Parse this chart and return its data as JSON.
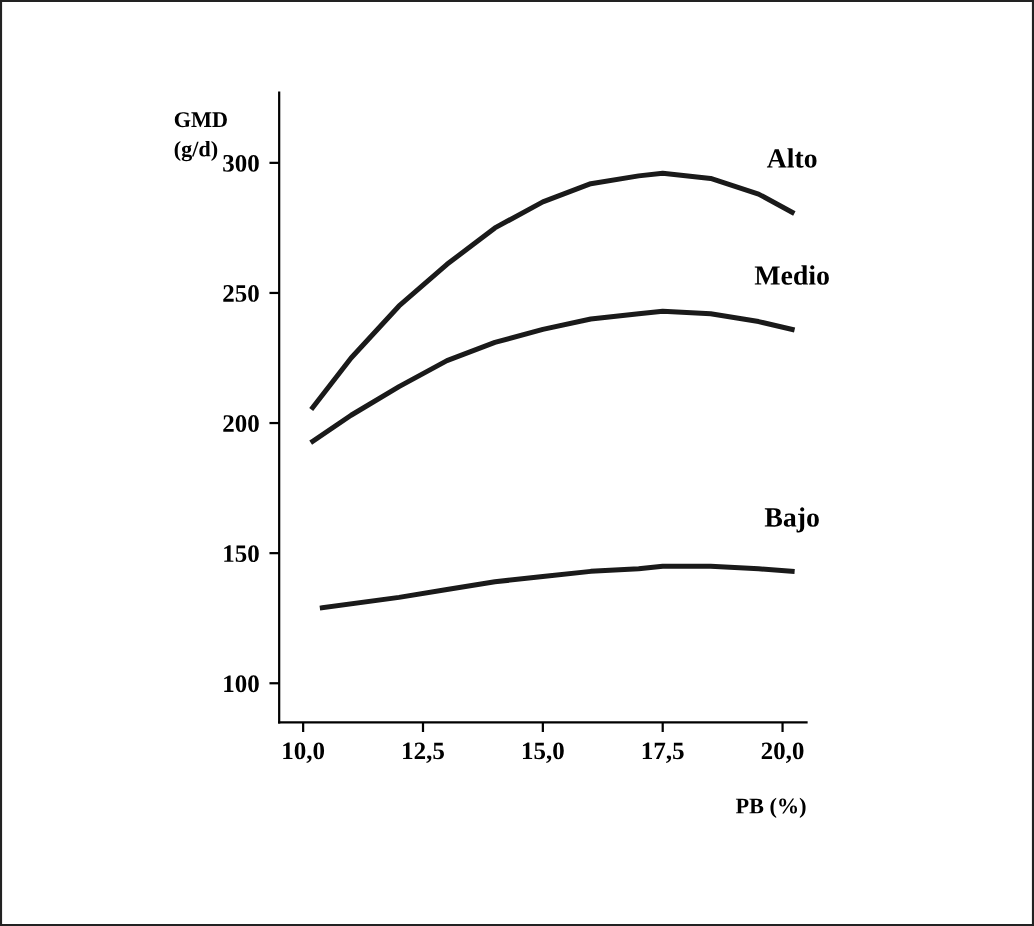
{
  "chart_data": {
    "type": "line",
    "xlabel": "PB (%)",
    "ylabel": "GMD\n(g/d)",
    "xlim": [
      9.5,
      20.5
    ],
    "ylim": [
      85,
      327
    ],
    "xticks": [
      {
        "value": 10,
        "label": "10,0"
      },
      {
        "value": 12.5,
        "label": "12,5"
      },
      {
        "value": 15,
        "label": "15,0"
      },
      {
        "value": 17.5,
        "label": "17,5"
      },
      {
        "value": 20,
        "label": "20,0"
      }
    ],
    "yticks": [
      100,
      150,
      200,
      250,
      300
    ],
    "grid": false,
    "legend": false,
    "marker": "none",
    "line_style": "solid",
    "series": [
      {
        "name": "Alto",
        "color": "#1a1a1a",
        "x": [
          10.2,
          11,
          12,
          13,
          14,
          15,
          16,
          17,
          17.5,
          18.5,
          19.5,
          20.2
        ],
        "values": [
          206,
          225,
          245,
          261,
          275,
          285,
          292,
          295,
          296,
          294,
          288,
          281
        ]
      },
      {
        "name": "Medio",
        "color": "#1a1a1a",
        "x": [
          10.2,
          11,
          12,
          13,
          14,
          15,
          16,
          17,
          17.5,
          18.5,
          19.5,
          20.2
        ],
        "values": [
          193,
          203,
          214,
          224,
          231,
          236,
          240,
          242,
          243,
          242,
          239,
          236
        ]
      },
      {
        "name": "Bajo",
        "color": "#1a1a1a",
        "x": [
          10.4,
          12,
          13,
          14,
          15,
          16,
          17,
          17.5,
          18.5,
          19.5,
          20.2
        ],
        "values": [
          129,
          133,
          136,
          139,
          141,
          143,
          144,
          145,
          145,
          144,
          143
        ]
      }
    ]
  }
}
